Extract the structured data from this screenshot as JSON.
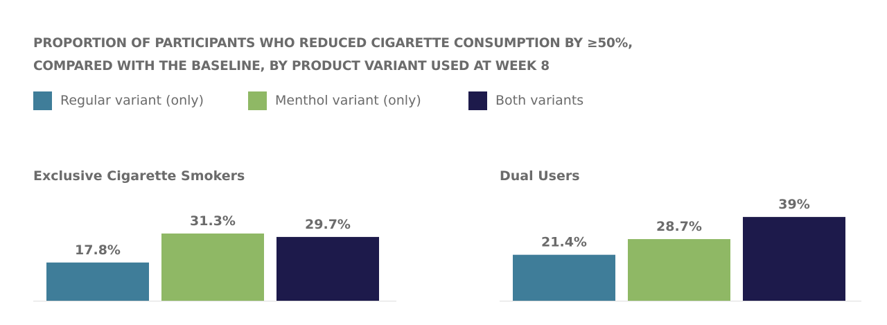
{
  "title_lines": [
    "PROPORTION OF PARTICIPANTS WHO REDUCED CIGARETTE CONSUMPTION BY ≥50%,",
    "COMPARED WITH THE BASELINE, BY PRODUCT VARIANT USED AT WEEK 8"
  ],
  "colors": {
    "regular": "#3f7d99",
    "menthol": "#8fb865",
    "both": "#1d1a4b",
    "axis": "#dddddd",
    "text": "#6b6b6b"
  },
  "chart_data": [
    {
      "type": "bar",
      "title": "Exclusive Cigarette Smokers",
      "categories": [
        "Regular variant (only)",
        "Menthol variant (only)",
        "Both variants"
      ],
      "values": [
        17.8,
        31.3,
        29.7
      ],
      "value_labels": [
        "17.8%",
        "31.3%",
        "29.7%"
      ],
      "legend": [
        "Regular variant (only)",
        "Menthol variant (only)",
        "Both variants"
      ],
      "legend_position": "top-left",
      "grid": false,
      "ylim": [
        0,
        45
      ]
    },
    {
      "type": "bar",
      "title": "Dual Users",
      "categories": [
        "Regular variant (only)",
        "Menthol variant (only)",
        "Both variants"
      ],
      "values": [
        21.4,
        28.7,
        39
      ],
      "value_labels": [
        "21.4%",
        "28.7%",
        "39%"
      ],
      "legend": [
        "Regular variant (only)",
        "Menthol variant (only)",
        "Both variants"
      ],
      "legend_position": "top-left",
      "grid": false,
      "ylim": [
        0,
        45
      ]
    }
  ]
}
